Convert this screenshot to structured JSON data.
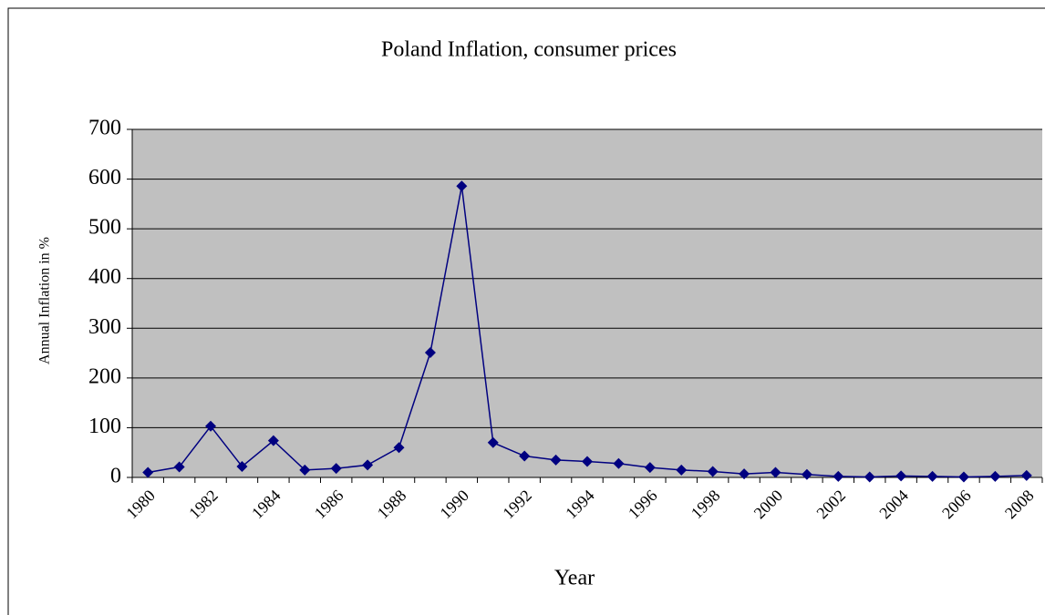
{
  "chart_data": {
    "type": "line",
    "title": "Poland Inflation, consumer prices",
    "xlabel": "Year",
    "ylabel": "Annual Inflation in %",
    "categories": [
      "1980",
      null,
      "1982",
      null,
      "1984",
      null,
      "1986",
      null,
      "1988",
      null,
      "1990",
      null,
      "1992",
      null,
      "1994",
      null,
      "1996",
      null,
      "1998",
      null,
      "2000",
      null,
      "2002",
      null,
      "2004",
      null,
      "2006",
      null,
      "2008"
    ],
    "values": [
      10,
      21,
      103,
      22,
      74,
      15,
      18,
      25,
      60,
      251,
      586,
      70,
      43,
      35,
      32,
      28,
      20,
      15,
      12,
      7,
      10,
      6,
      2,
      1,
      3,
      2,
      1,
      2,
      4
    ],
    "color": "#000080",
    "ylim": [
      0,
      700
    ],
    "yticks": [
      0,
      100,
      200,
      300,
      400,
      500,
      600,
      700
    ],
    "grid": true
  }
}
